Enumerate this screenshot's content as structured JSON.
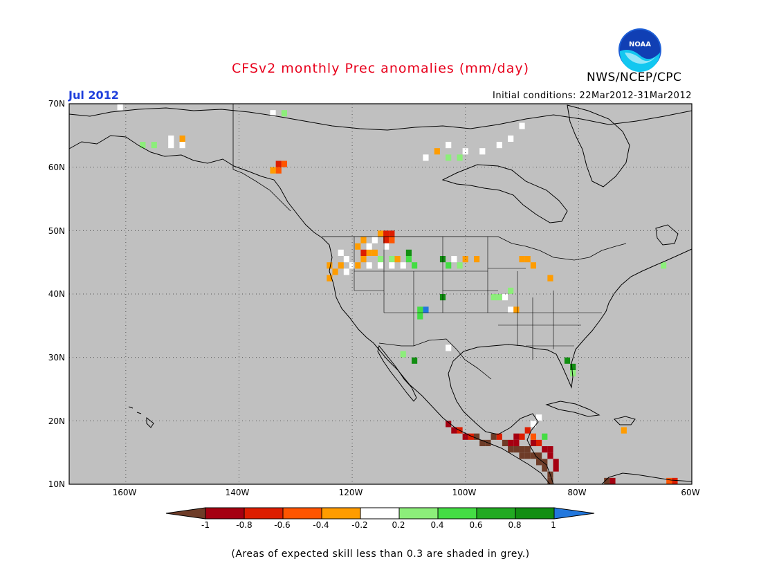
{
  "header": {
    "title": "CFSv2 monthly Prec anomalies (mm/day)",
    "month_label": "Jul 2012",
    "initial_conditions": "Initial conditions: 22Mar2012-31Mar2012",
    "agency": "NWS/NCEP/CPC",
    "logo_text": "NOAA"
  },
  "map": {
    "region": "North America",
    "lon_range": [
      -170,
      -60
    ],
    "lat_range": [
      10,
      70
    ],
    "lat_labels": [
      "70N",
      "60N",
      "50N",
      "40N",
      "30N",
      "20N",
      "10N"
    ],
    "lon_labels": [
      "160W",
      "140W",
      "120W",
      "100W",
      "80W",
      "60W"
    ],
    "background_color": "#c0c0c0",
    "grid": "dotted"
  },
  "colorbar": {
    "labels": [
      "-1",
      "-0.8",
      "-0.6",
      "-0.4",
      "-0.2",
      "0.2",
      "0.4",
      "0.6",
      "0.8",
      "1"
    ],
    "colors": [
      "#6e3c28",
      "#a50011",
      "#dd1e00",
      "#ff5500",
      "#ff9c00",
      "#ffffff",
      "#8cee7a",
      "#44dd44",
      "#22aa22",
      "#128e12",
      "#2277dd"
    ]
  },
  "anomaly_cells": [
    {
      "lon": -157,
      "lat": 63.5,
      "c": 6
    },
    {
      "lon": -155,
      "lat": 63.5,
      "c": 6
    },
    {
      "lon": -152,
      "lat": 63.5,
      "c": 5
    },
    {
      "lon": -150,
      "lat": 63.5,
      "c": 5
    },
    {
      "lon": -152,
      "lat": 64.5,
      "c": 5
    },
    {
      "lon": -150,
      "lat": 64.5,
      "c": 4
    },
    {
      "lon": -161,
      "lat": 69.5,
      "c": 5
    },
    {
      "lon": -134,
      "lat": 68.5,
      "c": 5
    },
    {
      "lon": -132,
      "lat": 68.5,
      "c": 6
    },
    {
      "lon": -133,
      "lat": 60.5,
      "c": 2
    },
    {
      "lon": -132,
      "lat": 60.5,
      "c": 3
    },
    {
      "lon": -133,
      "lat": 59.5,
      "c": 3
    },
    {
      "lon": -134,
      "lat": 59.5,
      "c": 4
    },
    {
      "lon": -107,
      "lat": 61.5,
      "c": 5
    },
    {
      "lon": -105,
      "lat": 62.5,
      "c": 4
    },
    {
      "lon": -103,
      "lat": 61.5,
      "c": 6
    },
    {
      "lon": -101,
      "lat": 61.5,
      "c": 6
    },
    {
      "lon": -103,
      "lat": 63.5,
      "c": 5
    },
    {
      "lon": -100,
      "lat": 62.5,
      "c": 5
    },
    {
      "lon": -97,
      "lat": 62.5,
      "c": 5
    },
    {
      "lon": -94,
      "lat": 63.5,
      "c": 5
    },
    {
      "lon": -92,
      "lat": 64.5,
      "c": 5
    },
    {
      "lon": -90,
      "lat": 66.5,
      "c": 5
    },
    {
      "lon": -124,
      "lat": 44.5,
      "c": 4
    },
    {
      "lon": -124,
      "lat": 42.5,
      "c": 4
    },
    {
      "lon": -123,
      "lat": 43.5,
      "c": 4
    },
    {
      "lon": -122,
      "lat": 44.5,
      "c": 4
    },
    {
      "lon": -122,
      "lat": 46.5,
      "c": 5
    },
    {
      "lon": -121,
      "lat": 45.5,
      "c": 5
    },
    {
      "lon": -120,
      "lat": 44.5,
      "c": 5
    },
    {
      "lon": -121,
      "lat": 43.5,
      "c": 5
    },
    {
      "lon": -119,
      "lat": 44.5,
      "c": 4
    },
    {
      "lon": -118,
      "lat": 45.5,
      "c": 4
    },
    {
      "lon": -117,
      "lat": 46.5,
      "c": 4
    },
    {
      "lon": -116,
      "lat": 46.5,
      "c": 4
    },
    {
      "lon": -119,
      "lat": 47.5,
      "c": 4
    },
    {
      "lon": -117,
      "lat": 47.5,
      "c": 5
    },
    {
      "lon": -116,
      "lat": 48.5,
      "c": 5
    },
    {
      "lon": -118,
      "lat": 48.5,
      "c": 4
    },
    {
      "lon": -115,
      "lat": 49.5,
      "c": 4
    },
    {
      "lon": -114,
      "lat": 49.5,
      "c": 2
    },
    {
      "lon": -113,
      "lat": 49.5,
      "c": 2
    },
    {
      "lon": -114,
      "lat": 48.5,
      "c": 2
    },
    {
      "lon": -113,
      "lat": 48.5,
      "c": 3
    },
    {
      "lon": -114,
      "lat": 47.5,
      "c": 5
    },
    {
      "lon": -115,
      "lat": 45.5,
      "c": 6
    },
    {
      "lon": -113,
      "lat": 45.5,
      "c": 6
    },
    {
      "lon": -117,
      "lat": 44.5,
      "c": 5
    },
    {
      "lon": -115,
      "lat": 44.5,
      "c": 5
    },
    {
      "lon": -113,
      "lat": 44.5,
      "c": 5
    },
    {
      "lon": -111,
      "lat": 44.5,
      "c": 5
    },
    {
      "lon": -112,
      "lat": 45.5,
      "c": 4
    },
    {
      "lon": -118,
      "lat": 46.5,
      "c": 2
    },
    {
      "lon": -110,
      "lat": 45.5,
      "c": 7
    },
    {
      "lon": -109,
      "lat": 44.5,
      "c": 7
    },
    {
      "lon": -110,
      "lat": 46.5,
      "c": 9
    },
    {
      "lon": -104,
      "lat": 45.5,
      "c": 9
    },
    {
      "lon": -103,
      "lat": 44.5,
      "c": 7
    },
    {
      "lon": -102,
      "lat": 45.5,
      "c": 5
    },
    {
      "lon": -100,
      "lat": 45.5,
      "c": 4
    },
    {
      "lon": -98,
      "lat": 45.5,
      "c": 4
    },
    {
      "lon": -101,
      "lat": 44.5,
      "c": 6
    },
    {
      "lon": -90,
      "lat": 45.5,
      "c": 4
    },
    {
      "lon": -89,
      "lat": 45.5,
      "c": 4
    },
    {
      "lon": -88,
      "lat": 44.5,
      "c": 4
    },
    {
      "lon": -85,
      "lat": 42.5,
      "c": 4
    },
    {
      "lon": -104,
      "lat": 39.5,
      "c": 9
    },
    {
      "lon": -107,
      "lat": 37.5,
      "c": 10
    },
    {
      "lon": -108,
      "lat": 37.5,
      "c": 7
    },
    {
      "lon": -108,
      "lat": 36.5,
      "c": 7
    },
    {
      "lon": -109,
      "lat": 29.5,
      "c": 9
    },
    {
      "lon": -111,
      "lat": 30.5,
      "c": 6
    },
    {
      "lon": -103,
      "lat": 31.5,
      "c": 5
    },
    {
      "lon": -95,
      "lat": 39.5,
      "c": 6
    },
    {
      "lon": -94,
      "lat": 39.5,
      "c": 6
    },
    {
      "lon": -93,
      "lat": 39.5,
      "c": 5
    },
    {
      "lon": -92,
      "lat": 40.5,
      "c": 6
    },
    {
      "lon": -92,
      "lat": 37.5,
      "c": 5
    },
    {
      "lon": -91,
      "lat": 37.5,
      "c": 4
    },
    {
      "lon": -82,
      "lat": 29.5,
      "c": 9
    },
    {
      "lon": -81,
      "lat": 28.5,
      "c": 9
    },
    {
      "lon": -81,
      "lat": 27.5,
      "c": 6
    },
    {
      "lon": -65,
      "lat": 44.5,
      "c": 6
    },
    {
      "lon": -103,
      "lat": 19.5,
      "c": 1
    },
    {
      "lon": -102,
      "lat": 18.5,
      "c": 1
    },
    {
      "lon": -101,
      "lat": 18.5,
      "c": 2
    },
    {
      "lon": -100,
      "lat": 17.5,
      "c": 1
    },
    {
      "lon": -99,
      "lat": 17.5,
      "c": 2
    },
    {
      "lon": -98,
      "lat": 17.5,
      "c": 0
    },
    {
      "lon": -97,
      "lat": 16.5,
      "c": 0
    },
    {
      "lon": -96,
      "lat": 16.5,
      "c": 0
    },
    {
      "lon": -95,
      "lat": 17.5,
      "c": 0
    },
    {
      "lon": -94,
      "lat": 17.5,
      "c": 2
    },
    {
      "lon": -93,
      "lat": 16.5,
      "c": 0
    },
    {
      "lon": -92,
      "lat": 16.5,
      "c": 1
    },
    {
      "lon": -92,
      "lat": 15.5,
      "c": 0
    },
    {
      "lon": -91,
      "lat": 15.5,
      "c": 0
    },
    {
      "lon": -90,
      "lat": 15.5,
      "c": 0
    },
    {
      "lon": -89,
      "lat": 15.5,
      "c": 0
    },
    {
      "lon": -90,
      "lat": 14.5,
      "c": 0
    },
    {
      "lon": -89,
      "lat": 14.5,
      "c": 0
    },
    {
      "lon": -88,
      "lat": 14.5,
      "c": 0
    },
    {
      "lon": -87,
      "lat": 14.5,
      "c": 0
    },
    {
      "lon": -87,
      "lat": 13.5,
      "c": 0
    },
    {
      "lon": -86,
      "lat": 13.5,
      "c": 0
    },
    {
      "lon": -86,
      "lat": 12.5,
      "c": 0
    },
    {
      "lon": -85,
      "lat": 11.5,
      "c": 0
    },
    {
      "lon": -85,
      "lat": 10.5,
      "c": 0
    },
    {
      "lon": -88,
      "lat": 16.5,
      "c": 1
    },
    {
      "lon": -87,
      "lat": 16.5,
      "c": 2
    },
    {
      "lon": -86,
      "lat": 15.5,
      "c": 1
    },
    {
      "lon": -85,
      "lat": 15.5,
      "c": 1
    },
    {
      "lon": -85,
      "lat": 14.5,
      "c": 1
    },
    {
      "lon": -84,
      "lat": 13.5,
      "c": 1
    },
    {
      "lon": -84,
      "lat": 12.5,
      "c": 1
    },
    {
      "lon": -89,
      "lat": 18.5,
      "c": 2
    },
    {
      "lon": -88,
      "lat": 19.5,
      "c": 5
    },
    {
      "lon": -87,
      "lat": 20.5,
      "c": 5
    },
    {
      "lon": -90,
      "lat": 17.5,
      "c": 2
    },
    {
      "lon": -91,
      "lat": 17.5,
      "c": 1
    },
    {
      "lon": -88,
      "lat": 17.5,
      "c": 3
    },
    {
      "lon": -91,
      "lat": 16.5,
      "c": 1
    },
    {
      "lon": -86,
      "lat": 17.5,
      "c": 7
    },
    {
      "lon": -75,
      "lat": 10.5,
      "c": 0
    },
    {
      "lon": -74,
      "lat": 10.5,
      "c": 1
    },
    {
      "lon": -72,
      "lat": 18.5,
      "c": 4
    },
    {
      "lon": -64,
      "lat": 10.5,
      "c": 3
    },
    {
      "lon": -63,
      "lat": 10.5,
      "c": 2
    }
  ],
  "footnote": "(Areas of expected skill less than 0.3 are shaded in grey.)"
}
